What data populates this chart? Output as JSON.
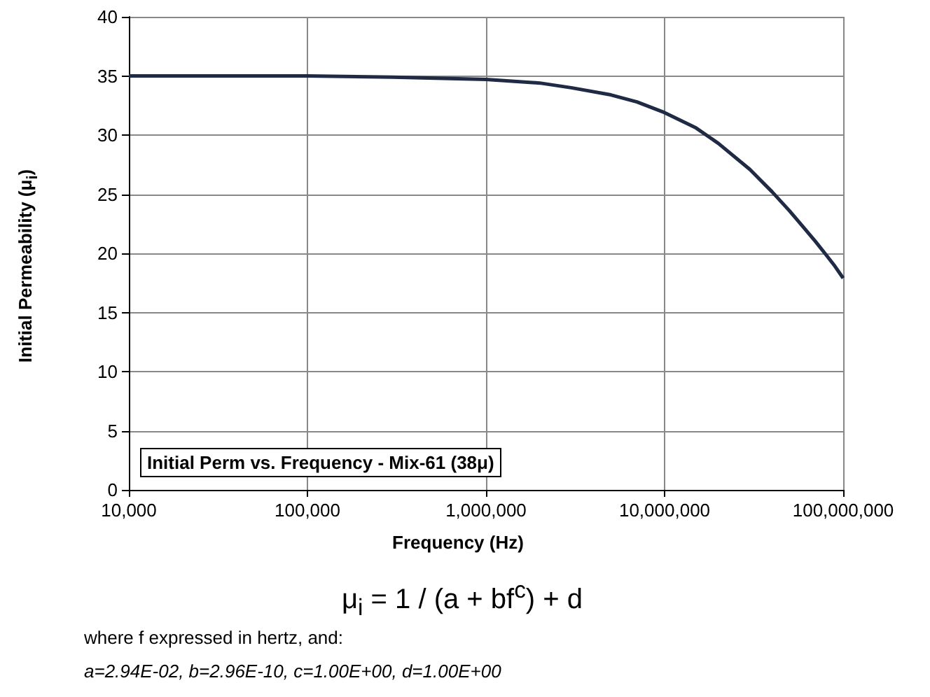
{
  "chart_data": {
    "type": "line",
    "title": "Initial Perm vs. Frequency - Mix-61  (38μ)",
    "xlabel": "Frequency (Hz)",
    "ylabel": "Initial Permeability (μ$_{i}$)",
    "annotations": [
      "μ$_{i}$ = 1 / (a + bf$^{c}$) + d",
      "where f expressed in hertz, and:",
      "a=2.94E-02,  b=2.96E-10,  c=1.00E+00,  d=1.00E+00"
    ],
    "log": "x",
    "grid": true,
    "marker": "none",
    "line_style": "solid",
    "xlim": [
      10000,
      100000000
    ],
    "xticks": [
      {
        "value": 10000,
        "label": "10,000"
      },
      {
        "value": 100000,
        "label": "100,000"
      },
      {
        "value": 1000000,
        "label": "1,000,000"
      },
      {
        "value": 10000000,
        "label": "10,000,000"
      },
      {
        "value": 100000000,
        "label": "100,000,000"
      }
    ],
    "ylim": [
      0,
      40
    ],
    "yticks": [
      0,
      5,
      10,
      15,
      20,
      25,
      30,
      35,
      40
    ],
    "series": [
      {
        "color": "#1f2a44",
        "x": [
          10000,
          100000,
          300000,
          1000000,
          2000000,
          3000000,
          5000000,
          7000000,
          10000000,
          15000000,
          20000000,
          30000000,
          40000000,
          50000000,
          60000000,
          70000000,
          80000000,
          90000000,
          100000000
        ],
        "values": [
          35,
          35,
          34.9,
          34.7,
          34.4,
          34,
          33.4,
          32.8,
          31.9,
          30.6,
          29.3,
          27.1,
          25.2,
          23.6,
          22.2,
          21,
          19.9,
          18.9,
          17.9
        ]
      }
    ]
  }
}
